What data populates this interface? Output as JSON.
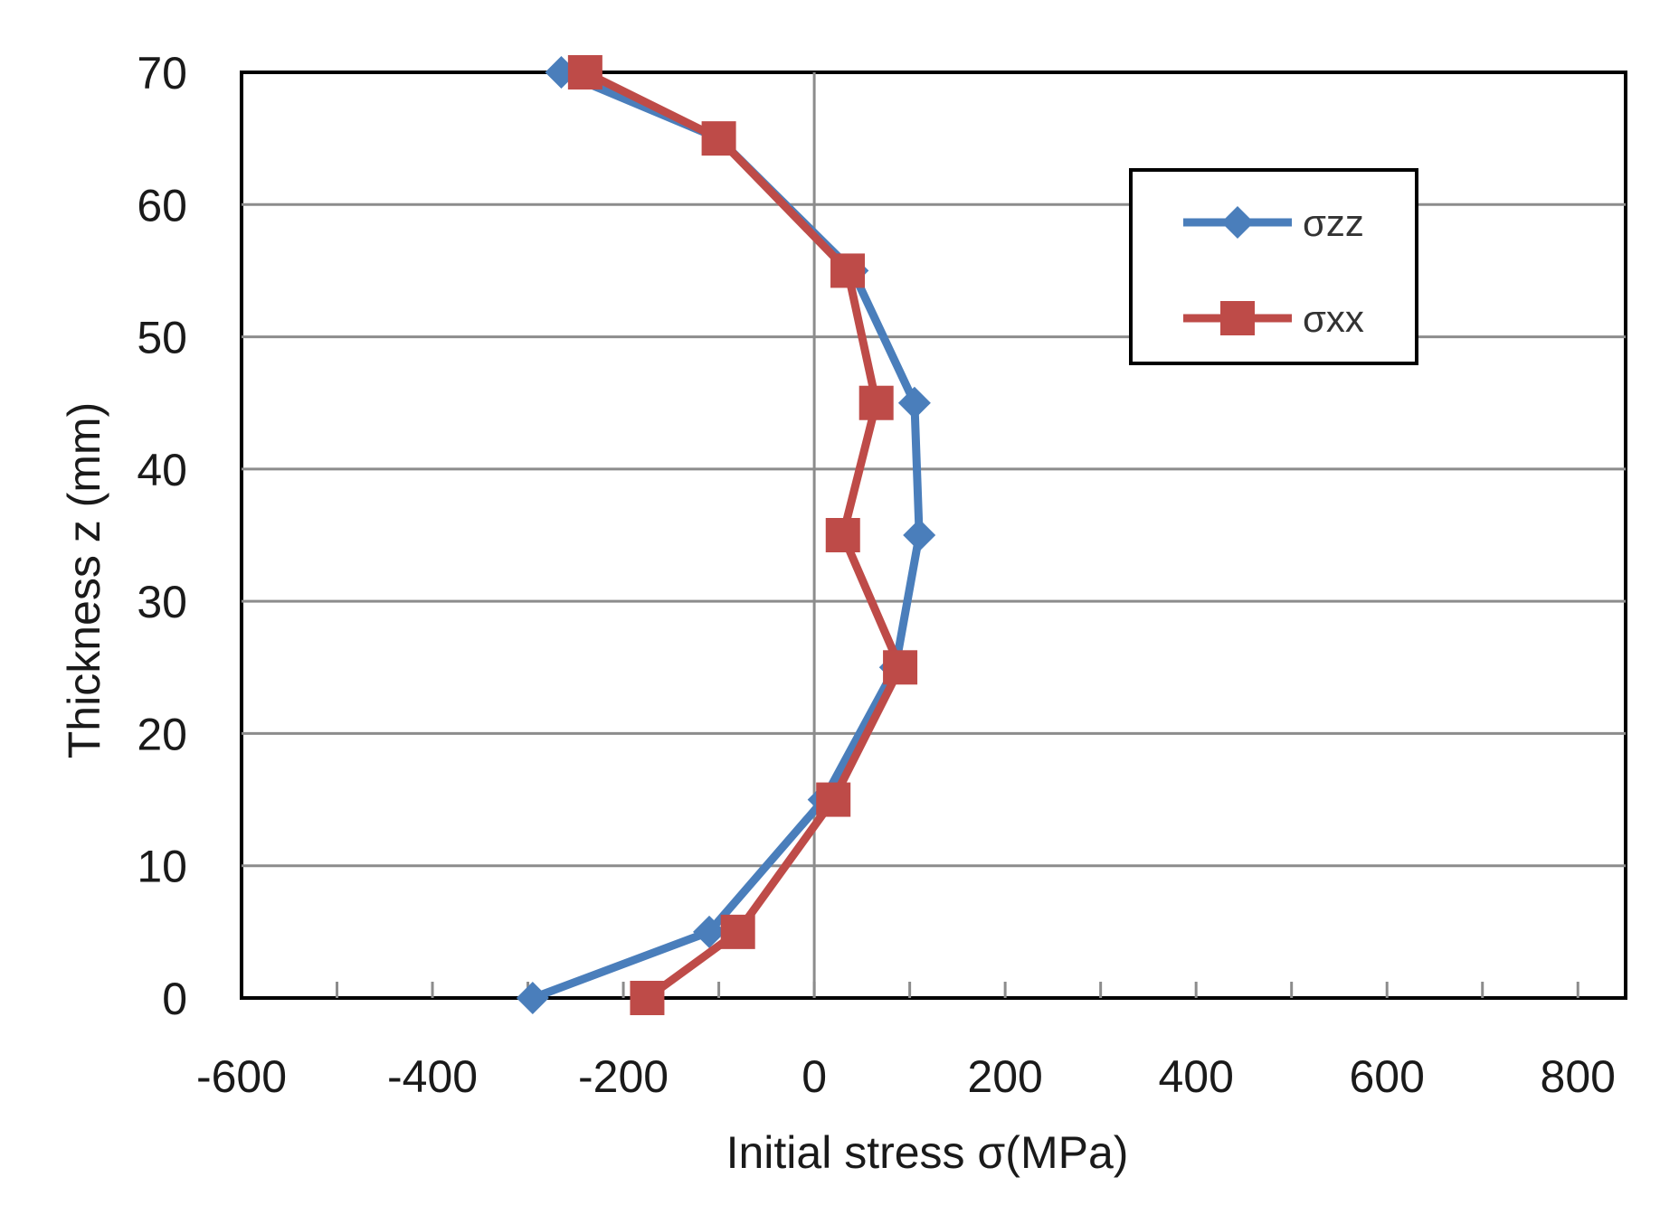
{
  "chart_data": {
    "type": "line",
    "title": "",
    "xlabel": "Initial stress σ(MPa)",
    "ylabel": "Thickness z (mm)",
    "xlim": [
      -600,
      850
    ],
    "ylim": [
      0,
      70
    ],
    "x_ticks": [
      -600,
      -400,
      -200,
      0,
      200,
      400,
      600,
      800
    ],
    "x_tick_labels": [
      "-600",
      "-400",
      "-200",
      "0",
      "200",
      "400",
      "600",
      "800"
    ],
    "y_ticks": [
      0,
      10,
      20,
      30,
      40,
      50,
      60,
      70
    ],
    "y_tick_labels": [
      "0",
      "10",
      "20",
      "30",
      "40",
      "50",
      "60",
      "70"
    ],
    "grid": "horizontal",
    "legend_position": "top-right",
    "series": [
      {
        "name": "σzz",
        "color": "#4a7ebb",
        "marker": "diamond",
        "points": [
          {
            "x": -295,
            "z": 0
          },
          {
            "x": -110,
            "z": 5
          },
          {
            "x": 10,
            "z": 15
          },
          {
            "x": 85,
            "z": 25
          },
          {
            "x": 110,
            "z": 35
          },
          {
            "x": 105,
            "z": 45
          },
          {
            "x": 40,
            "z": 55
          },
          {
            "x": -100,
            "z": 65
          },
          {
            "x": -265,
            "z": 70
          }
        ]
      },
      {
        "name": "σxx",
        "color": "#be4b48",
        "marker": "square",
        "points": [
          {
            "x": -175,
            "z": 0
          },
          {
            "x": -80,
            "z": 5
          },
          {
            "x": 20,
            "z": 15
          },
          {
            "x": 90,
            "z": 25
          },
          {
            "x": 30,
            "z": 35
          },
          {
            "x": 65,
            "z": 45
          },
          {
            "x": 35,
            "z": 55
          },
          {
            "x": -100,
            "z": 65
          },
          {
            "x": -240,
            "z": 70
          }
        ]
      }
    ]
  }
}
